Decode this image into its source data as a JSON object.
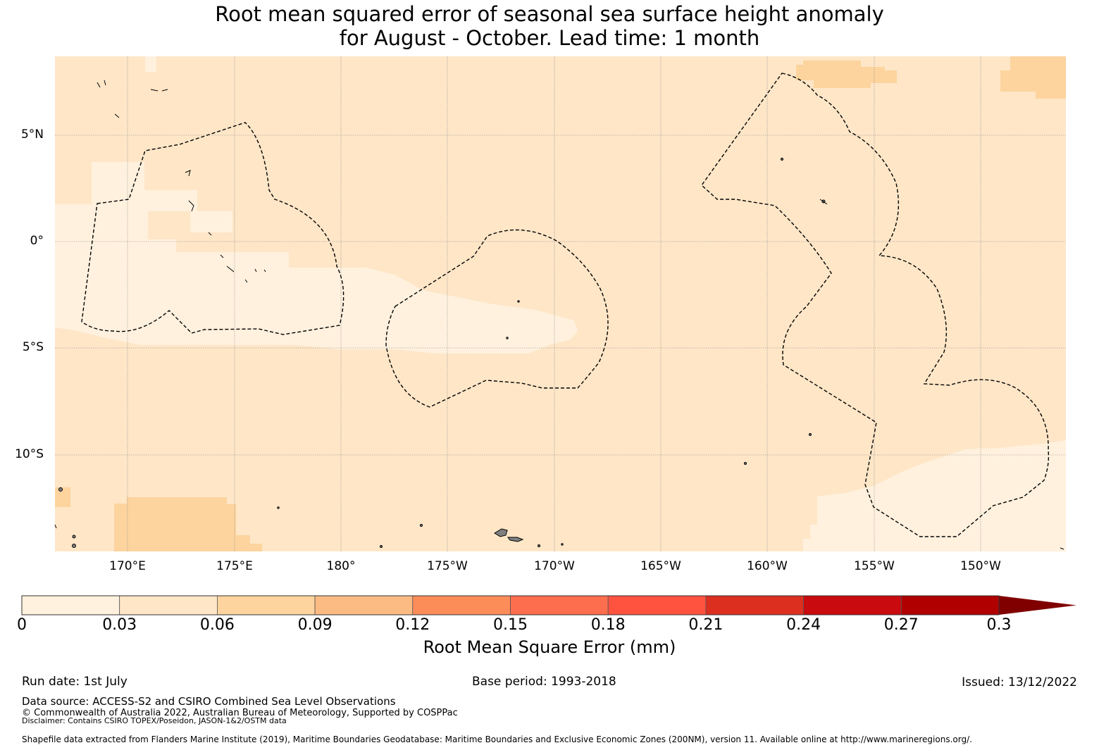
{
  "title": {
    "line1": "Root mean squared error of seasonal sea surface height anomaly",
    "line2": "for August - October. Lead time: 1 month"
  },
  "map": {
    "lat_labels": [
      "5°N",
      "0°",
      "5°S",
      "10°S"
    ],
    "lon_labels": [
      "170°E",
      "175°E",
      "180°",
      "175°W",
      "170°W",
      "165°W",
      "160°W",
      "155°W",
      "150°W"
    ],
    "colors": {
      "band_0_003": "#fff1de",
      "band_003_006": "#fee6c7",
      "band_006_009": "#fdd49e",
      "land": "#808080",
      "eez_line": "#000000"
    }
  },
  "colorbar": {
    "ticks": [
      "0",
      "0.03",
      "0.06",
      "0.09",
      "0.12",
      "0.15",
      "0.18",
      "0.21",
      "0.24",
      "0.27",
      "0.3"
    ],
    "colors": [
      "#fff1de",
      "#fee6c7",
      "#fdd49e",
      "#fdbb84",
      "#fc8d59",
      "#fc6e4d",
      "#ff5340",
      "#dc2f20",
      "#c90a0e",
      "#b00000",
      "#800000"
    ],
    "label": "Root Mean Square Error (mm)"
  },
  "footer": {
    "run_date": "Run date: 1st July",
    "base_period": "Base period: 1993-2018",
    "issued": "Issued: 13/12/2022",
    "data_source": "Data source: ACCESS-S2 and CSIRO Combined Sea Level Observations",
    "copyright": "© Commonwealth of Australia 2022, Australian Bureau of Meteorology, Supported by COSPPac",
    "disclaimer": "Disclaimer: Contains CSIRO TOPEX/Poseidon, JASON-1&2/OSTM data",
    "shapefile": "Shapefile data extracted from Flanders Marine Institute (2019), Maritime Boundaries Geodatabase: Maritime Boundaries and Exclusive Economic Zones (200NM), version 11. Available online at http://www.marineregions.org/."
  }
}
